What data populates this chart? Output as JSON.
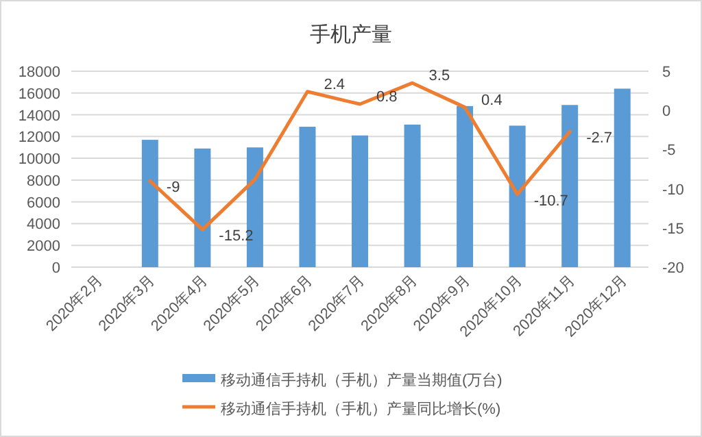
{
  "chart_data": {
    "type": "bar",
    "title": "手机产量",
    "categories": [
      "2020年2月",
      "2020年3月",
      "2020年4月",
      "2020年5月",
      "2020年6月",
      "2020年7月",
      "2020年8月",
      "2020年9月",
      "2020年10月",
      "2020年11月",
      "2020年12月"
    ],
    "series": [
      {
        "name": "移动通信手持机（手机）产量当期值(万台)",
        "color": "#5b9bd5",
        "values": [
          null,
          11700,
          10900,
          11000,
          12900,
          12100,
          13100,
          14800,
          13000,
          14900,
          16400
        ]
      },
      {
        "name": "移动通信手持机（手机）产量同比增长(%)",
        "type": "line",
        "axis": "y2",
        "color": "#ed7d31",
        "marker": "none",
        "values": [
          null,
          -9,
          -15.2,
          -8.8,
          2.4,
          0.8,
          3.5,
          0.4,
          -10.7,
          -2.7,
          null
        ],
        "value_labels": [
          null,
          "-9",
          "-15.2",
          null,
          "2.4",
          "0.8",
          "3.5",
          "0.4",
          "-10.7",
          "-2.7",
          null
        ]
      }
    ],
    "ylim": [
      0,
      18000
    ],
    "yticks": [
      0,
      2000,
      4000,
      6000,
      8000,
      10000,
      12000,
      14000,
      16000,
      18000
    ],
    "y2lim": [
      -20,
      5
    ],
    "y2ticks": [
      -20,
      -15,
      -10,
      -5,
      0,
      5
    ],
    "grid": "y",
    "legend": "bottom"
  }
}
